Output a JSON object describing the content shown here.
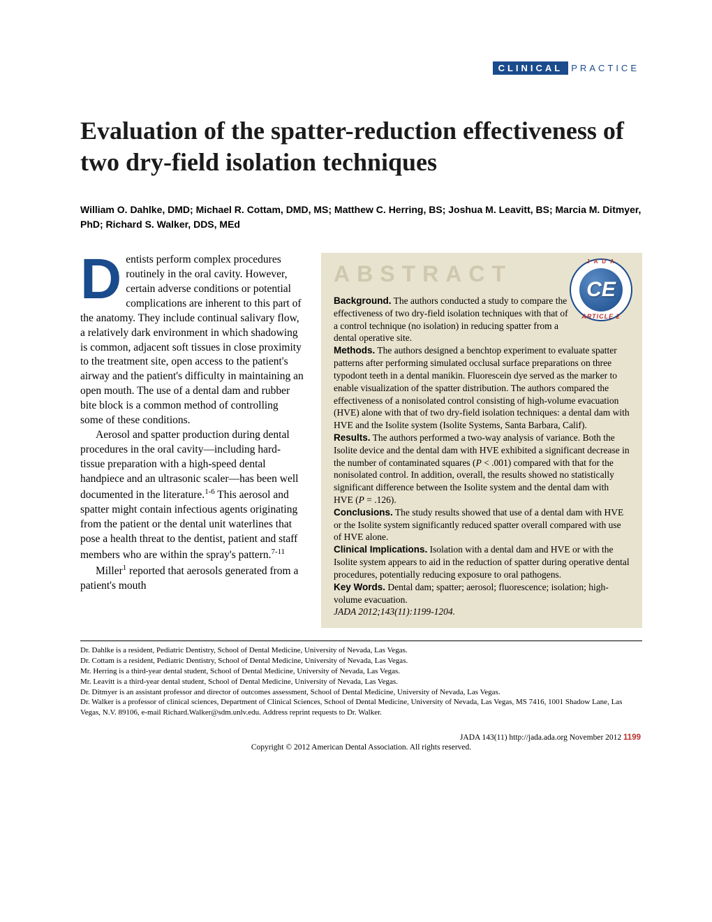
{
  "header": {
    "tag_bold": "CLINICAL",
    "tag_light": "PRACTICE"
  },
  "title": "Evaluation of the spatter-reduction effectiveness of two dry-field isolation techniques",
  "authors": "William O. Dahlke, DMD; Michael R. Cottam, DMD, MS; Matthew C. Herring, BS; Joshua M. Leavitt, BS; Marcia M. Ditmyer, PhD; Richard S. Walker, DDS, MEd",
  "body": {
    "dropcap": "D",
    "p1": "entists perform complex procedures routinely in the oral cavity. However, certain adverse conditions or potential complications are inherent to this part of the anatomy. They include continual salivary flow, a relatively dark environment in which shadowing is common, adjacent soft tissues in close proximity to the treatment site, open access to the patient's airway and the patient's difficulty in maintaining an open mouth. The use of a dental dam and rubber bite block is a common method of controlling some of these conditions.",
    "p2_a": "Aerosol and spatter production during dental procedures in the oral cavity—including hard-tissue preparation with a high-speed dental handpiece and an ultrasonic scaler—has been well documented in the literature.",
    "p2_sup1": "1-6",
    "p2_b": " This aerosol and spatter might contain infectious agents originating from the patient or the dental unit waterlines that pose a health threat to the dentist, patient and staff members who are within the spray's pattern.",
    "p2_sup2": "7-11",
    "p3_a": "Miller",
    "p3_sup": "1",
    "p3_b": " reported that aerosols generated from a patient's mouth"
  },
  "abstract": {
    "heading": "ABSTRACT",
    "badge": {
      "top": "J A D A",
      "ce": "CE",
      "bottom": "ARTICLE 2"
    },
    "background_label": "Background.",
    "background": " The authors conducted a study to compare the effectiveness of two dry-field isolation techniques with that of a control technique (no isolation) in reducing spatter from a dental operative site.",
    "methods_label": "Methods.",
    "methods": " The authors designed a benchtop experiment to evaluate spatter patterns after performing simulated occlusal surface preparations on three typodont teeth in a dental manikin. Fluorescein dye served as the marker to enable visualization of the spatter distribution. The authors compared the effectiveness of a nonisolated control consisting of high-volume evacuation (HVE) alone with that of two dry-field isolation techniques: a dental dam with HVE and the Isolite system (Isolite Systems, Santa Barbara, Calif).",
    "results_label": "Results.",
    "results_a": " The authors performed a two-way analysis of variance. Both the Isolite device and the dental dam with HVE exhibited a significant decrease in the number of contaminated squares (",
    "results_p1": "P",
    "results_b": " < .001) compared with that for the nonisolated control. In addition, overall, the results showed no statistically significant difference between the Isolite system and the dental dam with HVE (",
    "results_p2": "P",
    "results_c": " = .126).",
    "conclusions_label": "Conclusions.",
    "conclusions": " The study results showed that use of a dental dam with HVE or the Isolite system significantly reduced spatter overall compared with use of HVE alone.",
    "clinical_label": "Clinical Implications.",
    "clinical": " Isolation with a dental dam and HVE or with the Isolite system appears to aid in the reduction of spatter during operative dental procedures, potentially reducing exposure to oral pathogens.",
    "keywords_label": "Key Words.",
    "keywords": " Dental dam; spatter; aerosol; fluorescence; isolation; high-volume evacuation.",
    "citation": "JADA 2012;143(11):1199-1204."
  },
  "affiliations": [
    "Dr. Dahlke is a resident, Pediatric Dentistry, School of Dental Medicine, University of Nevada, Las Vegas.",
    "Dr. Cottam is a resident, Pediatric Dentistry, School of Dental Medicine, University of Nevada, Las Vegas.",
    "Mr. Herring is a third-year dental student, School of Dental Medicine, University of Nevada, Las Vegas.",
    "Mr. Leavitt is a third-year dental student, School of Dental Medicine, University of Nevada, Las Vegas.",
    "Dr. Ditmyer is an assistant professor and director of outcomes assessment, School of Dental Medicine, University of Nevada, Las Vegas.",
    "Dr. Walker is a professor of clinical sciences, Department of Clinical Sciences, School of Dental Medicine, University of Nevada, Las Vegas, MS 7416, 1001 Shadow Lane, Las Vegas, N.V. 89106, e-mail Richard.Walker@sdm.unlv.edu. Address reprint requests to Dr. Walker."
  ],
  "footer": {
    "line1_a": "JADA 143(11)   http://jada.ada.org   November 2012  ",
    "pagenum": "1199",
    "line2": "Copyright © 2012 American Dental Association. All rights reserved."
  },
  "colors": {
    "brand_blue": "#1a4b8c",
    "abstract_bg": "#e8e3cf",
    "abstract_title": "#cfc8ae",
    "accent_red": "#b8312f"
  }
}
